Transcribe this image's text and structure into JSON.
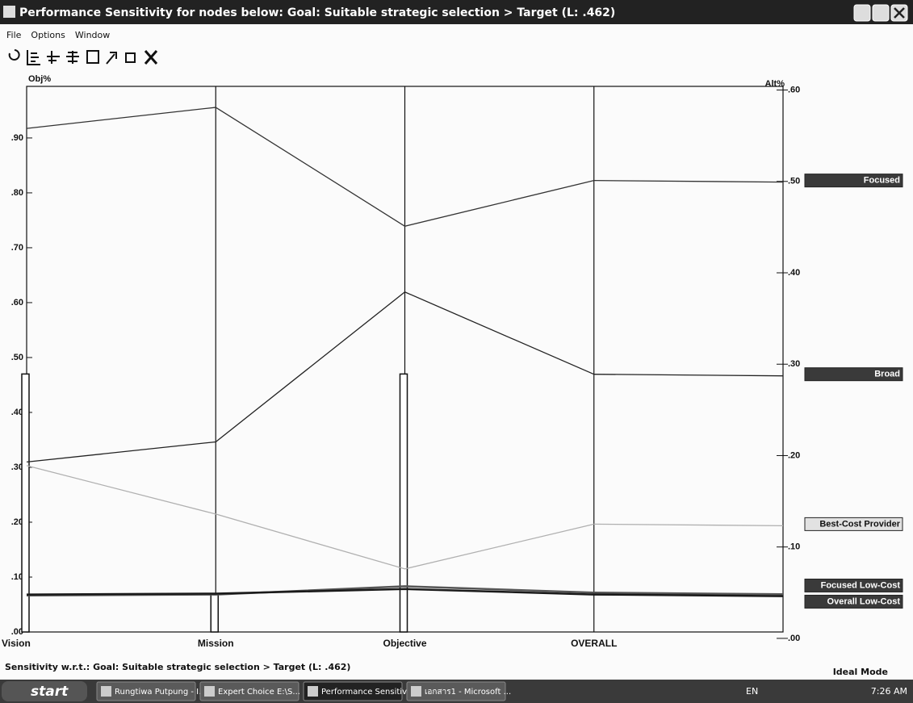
{
  "window": {
    "title": "Performance Sensitivity for nodes below: Goal: Suitable strategic selection > Target (L: .462)",
    "menu": [
      "File",
      "Options",
      "Window"
    ],
    "footer": "Sensitivity w.r.t.: Goal: Suitable strategic selection > Target (L: .462)",
    "mode": "Ideal Mode"
  },
  "chart_data": {
    "type": "line",
    "ylabel": "Obj%",
    "y2label": "Alt%",
    "categories": [
      "Vision",
      "Mission",
      "Objective",
      "OVERALL"
    ],
    "objective_values": [
      0.47,
      0.07,
      0.47,
      null
    ],
    "bar_color": "#ffffff",
    "ylim": [
      0,
      0.994
    ],
    "yticks": [
      {
        "value": 0,
        "label": ".00"
      },
      {
        "value": 0.1,
        "label": ".10"
      },
      {
        "value": 0.2,
        "label": ".20"
      },
      {
        "value": 0.3,
        "label": ".30"
      },
      {
        "value": 0.4,
        "label": ".40"
      },
      {
        "value": 0.5,
        "label": ".50"
      },
      {
        "value": 0.6,
        "label": ".60"
      },
      {
        "value": 0.7,
        "label": ".70"
      },
      {
        "value": 0.8,
        "label": ".80"
      },
      {
        "value": 0.9,
        "label": ".90"
      }
    ],
    "y2lim": [
      0.007,
      0.604
    ],
    "y2ticks": [
      {
        "value": 0,
        "label": ".00"
      },
      {
        "value": 0.1,
        "label": ".10"
      },
      {
        "value": 0.2,
        "label": ".20"
      },
      {
        "value": 0.3,
        "label": ".30"
      },
      {
        "value": 0.4,
        "label": ".40"
      },
      {
        "value": 0.5,
        "label": ".50"
      },
      {
        "value": 0.6,
        "label": ".60"
      }
    ],
    "series": [
      {
        "name": "Focused",
        "color": "#333333",
        "axis": "y2",
        "values": [
          0.558,
          0.581,
          0.451,
          0.501
        ]
      },
      {
        "name": "Broad",
        "color": "#222222",
        "axis": "y2",
        "values": [
          0.193,
          0.215,
          0.379,
          0.289
        ]
      },
      {
        "name": "Best-Cost Provider",
        "color": "#b0b0b0",
        "axis": "y2",
        "values": [
          0.189,
          0.136,
          0.076,
          0.125
        ]
      },
      {
        "name": "Focused Low-Cost",
        "color": "#555555",
        "axis": "y2",
        "values": [
          0.047,
          0.048,
          0.057,
          0.05
        ]
      },
      {
        "name": "Overall Low-Cost",
        "color": "#1a1a1a",
        "axis": "y2",
        "values": [
          0.048,
          0.049,
          0.054,
          0.048
        ]
      }
    ]
  },
  "taskbar": {
    "start": "start",
    "buttons": [
      "Rungtiwa Putpung - I...",
      "Expert Choice   E:\\S...",
      "Performance Sensitivi...",
      "เอกสาร1 - Microsoft ..."
    ],
    "language": "EN",
    "clock": "7:26 AM"
  }
}
